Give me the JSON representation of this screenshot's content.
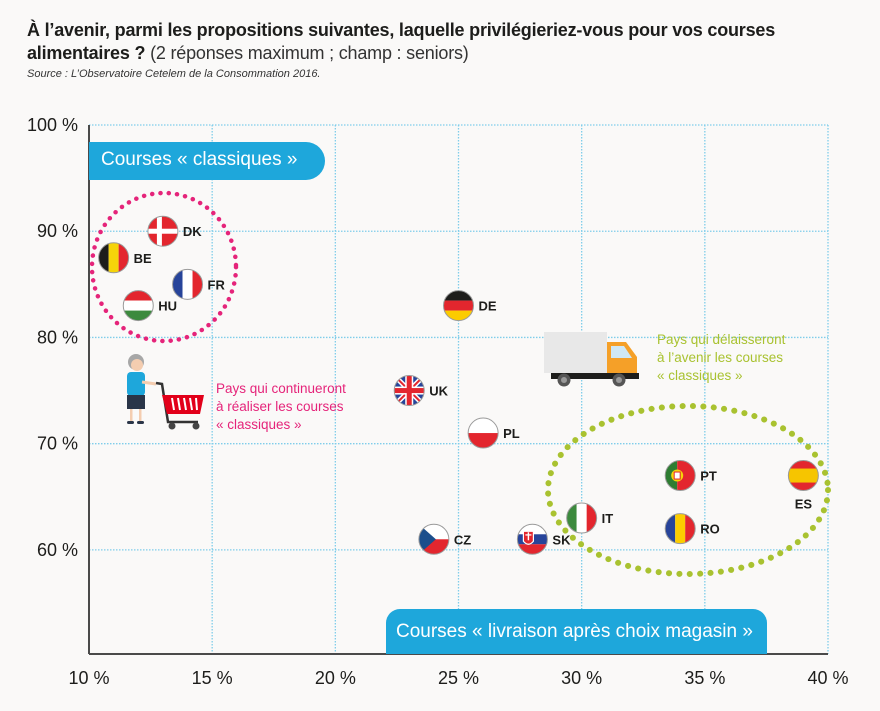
{
  "header": {
    "title_bold": "À l’avenir, parmi les propositions suivantes, laquelle privilégieriez-vous pour vos courses alimentaires ?",
    "title_light": " (2 réponses maximum ; champ : seniors)",
    "source": "Source : L’Observatoire Cetelem de la Consommation 2016."
  },
  "labels": {
    "top_pill": "Courses « classiques »",
    "bottom_pill": "Courses « livraison après choix magasin »",
    "note_pink": [
      "Pays qui continueront",
      "à réaliser les courses",
      "« classiques »"
    ],
    "note_green": [
      "Pays qui délaisseront",
      "à l’avenir les courses",
      "« classiques »"
    ]
  },
  "colors": {
    "accent_blue": "#1ea7db",
    "grid": "#7fcdea",
    "pink": "#e5247a",
    "green": "#a9c230"
  },
  "chart_data": {
    "type": "scatter",
    "title": "À l’avenir, parmi les propositions suivantes, laquelle privilégieriez-vous pour vos courses alimentaires ? (2 réponses maximum ; champ : seniors)",
    "xlabel": "Courses « livraison après choix magasin »",
    "ylabel": "Courses « classiques »",
    "xlim": [
      10,
      40
    ],
    "ylim": [
      50,
      100
    ],
    "x_ticks": [
      "10 %",
      "15 %",
      "20 %",
      "25 %",
      "30 %",
      "35 %",
      "40 %"
    ],
    "x_tick_values": [
      10,
      15,
      20,
      25,
      30,
      35,
      40
    ],
    "y_ticks": [
      "100 %",
      "90 %",
      "80 %",
      "70 %",
      "60 %"
    ],
    "y_tick_values": [
      100,
      90,
      80,
      70,
      60
    ],
    "grid": true,
    "points": [
      {
        "code": "BE",
        "x": 11,
        "y": 87.5,
        "flag": "be",
        "label_pos": "right",
        "group": "classic"
      },
      {
        "code": "DK",
        "x": 13,
        "y": 90,
        "flag": "dk",
        "label_pos": "right",
        "group": "classic"
      },
      {
        "code": "FR",
        "x": 14,
        "y": 85,
        "flag": "fr",
        "label_pos": "right",
        "group": "classic"
      },
      {
        "code": "HU",
        "x": 12,
        "y": 83,
        "flag": "hu",
        "label_pos": "right",
        "group": "classic"
      },
      {
        "code": "DE",
        "x": 25,
        "y": 83,
        "flag": "de",
        "label_pos": "right",
        "group": "none"
      },
      {
        "code": "UK",
        "x": 23,
        "y": 75,
        "flag": "uk",
        "label_pos": "right",
        "group": "none"
      },
      {
        "code": "PL",
        "x": 26,
        "y": 71,
        "flag": "pl",
        "label_pos": "right",
        "group": "none"
      },
      {
        "code": "CZ",
        "x": 24,
        "y": 61,
        "flag": "cz",
        "label_pos": "right",
        "group": "none"
      },
      {
        "code": "SK",
        "x": 28,
        "y": 61,
        "flag": "sk",
        "label_pos": "right",
        "group": "none"
      },
      {
        "code": "IT",
        "x": 30,
        "y": 63,
        "flag": "it",
        "label_pos": "right",
        "group": "delivery"
      },
      {
        "code": "PT",
        "x": 34,
        "y": 67,
        "flag": "pt",
        "label_pos": "right",
        "group": "delivery"
      },
      {
        "code": "RO",
        "x": 34,
        "y": 62,
        "flag": "ro",
        "label_pos": "right",
        "group": "delivery"
      },
      {
        "code": "ES",
        "x": 39,
        "y": 67,
        "flag": "es",
        "label_pos": "below",
        "group": "delivery"
      }
    ],
    "annotations": [
      {
        "text": "Pays qui continueront à réaliser les courses « classiques »",
        "color": "pink",
        "encircles": [
          "BE",
          "DK",
          "FR",
          "HU"
        ]
      },
      {
        "text": "Pays qui délaisseront à l’avenir les courses « classiques »",
        "color": "green",
        "encircles": [
          "IT",
          "PT",
          "RO",
          "ES"
        ]
      }
    ]
  }
}
